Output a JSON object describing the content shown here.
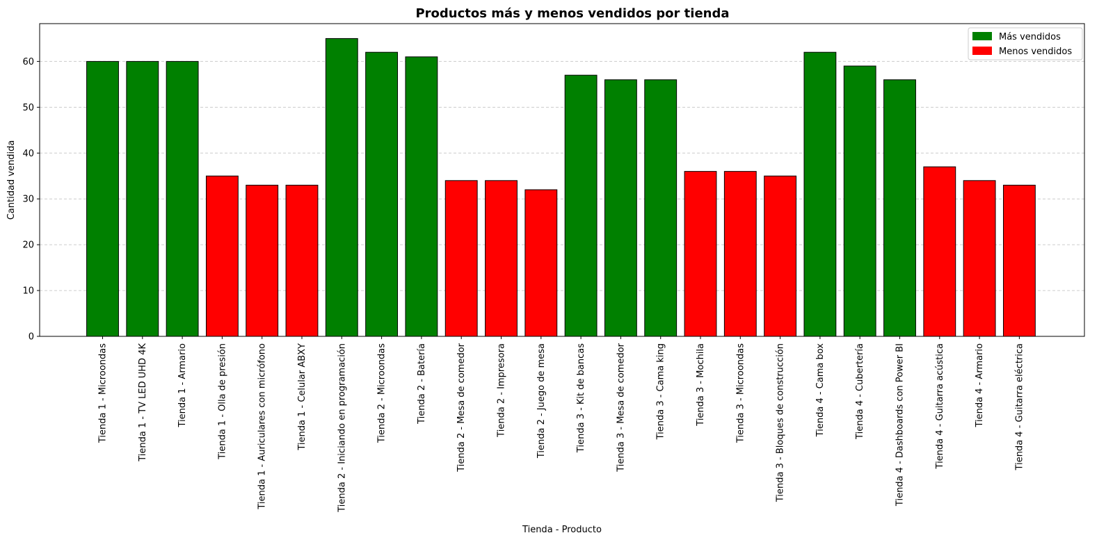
{
  "chart_data": {
    "type": "bar",
    "title": "Productos más y menos vendidos por tienda",
    "xlabel": "Tienda - Producto",
    "ylabel": "Cantidad vendida",
    "ylim": [
      0,
      68.25
    ],
    "yticks": [
      0,
      10,
      20,
      30,
      40,
      50,
      60
    ],
    "grid": "y-dashed",
    "legend_position": "top-right",
    "colors": {
      "mas": "#008000",
      "menos": "#ff0000",
      "edge": "#000000",
      "grid": "#cccccc"
    },
    "legend": [
      {
        "label": "Más vendidos",
        "group": "mas"
      },
      {
        "label": "Menos vendidos",
        "group": "menos"
      }
    ],
    "categories": [
      "Tienda 1 - Microondas",
      "Tienda 1 - TV LED UHD 4K",
      "Tienda 1 - Armario",
      "Tienda 1 - Olla de presión",
      "Tienda 1 - Auriculares con micrófono",
      "Tienda 1 - Celular ABXY",
      "Tienda 2 - Iniciando en programación",
      "Tienda 2 - Microondas",
      "Tienda 2 - Batería",
      "Tienda 2 - Mesa de comedor",
      "Tienda 2 - Impresora",
      "Tienda 2 - Juego de mesa",
      "Tienda 3 - Kit de bancas",
      "Tienda 3 - Mesa de comedor",
      "Tienda 3 - Cama king",
      "Tienda 3 - Mochila",
      "Tienda 3 - Microondas",
      "Tienda 3 - Bloques de construcción",
      "Tienda 4 - Cama box",
      "Tienda 4 - Cubertería",
      "Tienda 4 - Dashboards con Power BI",
      "Tienda 4 - Guitarra acústica",
      "Tienda 4 - Armario",
      "Tienda 4 - Guitarra eléctrica"
    ],
    "values": [
      60,
      60,
      60,
      35,
      33,
      33,
      65,
      62,
      61,
      34,
      34,
      32,
      57,
      56,
      56,
      36,
      36,
      35,
      62,
      59,
      56,
      37,
      34,
      33
    ],
    "groups": [
      "mas",
      "mas",
      "mas",
      "menos",
      "menos",
      "menos",
      "mas",
      "mas",
      "mas",
      "menos",
      "menos",
      "menos",
      "mas",
      "mas",
      "mas",
      "menos",
      "menos",
      "menos",
      "mas",
      "mas",
      "mas",
      "menos",
      "menos",
      "menos"
    ]
  }
}
